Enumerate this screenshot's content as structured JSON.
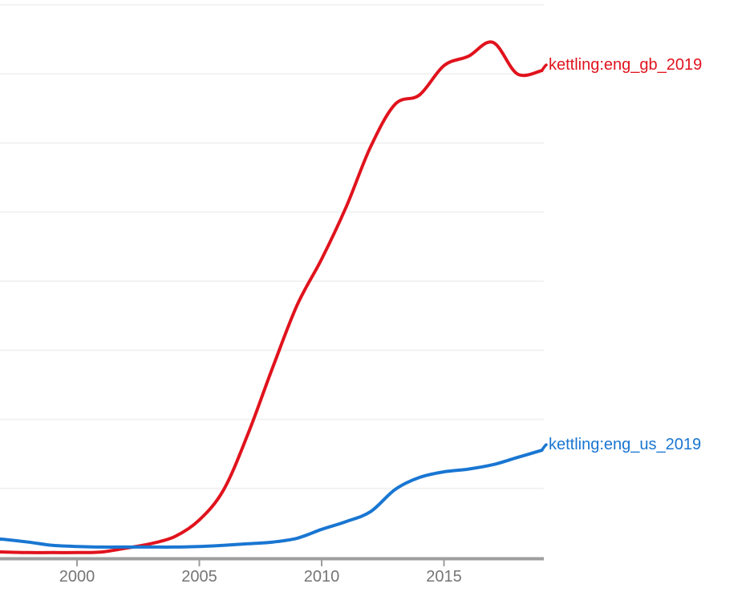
{
  "chart_data": {
    "type": "line",
    "title": "",
    "xlabel": "",
    "ylabel": "",
    "x": [
      1997,
      1998,
      1999,
      2000,
      2001,
      2002,
      2003,
      2004,
      2005,
      2006,
      2007,
      2008,
      2009,
      2010,
      2011,
      2012,
      2013,
      2014,
      2015,
      2016,
      2017,
      2018,
      2019
    ],
    "x_ticks": [
      2000,
      2005,
      2010,
      2015
    ],
    "x_tick_labels": [
      "2000",
      "2005",
      "2010",
      "2015"
    ],
    "xlim": [
      1996.85,
      2019
    ],
    "ylim": [
      0,
      100
    ],
    "y_axis_labels_visible": false,
    "y_units": "relative usage (percent of plot height; y-axis labels cropped out of screenshot)",
    "grid": "horizontal gridlines, 8 evenly spaced, no vertical gridlines",
    "legend_position": "inline labels at right end of each line",
    "series": [
      {
        "name": "kettling:eng_gb_2019",
        "color": "#e0131d",
        "values": [
          1.0,
          0.9,
          0.9,
          0.9,
          1.0,
          1.7,
          2.5,
          3.8,
          6.8,
          12.3,
          22.5,
          34.4,
          45.7,
          54.0,
          63.4,
          74.3,
          82.0,
          83.7,
          89.0,
          90.7,
          93.2,
          87.5,
          88.1
        ]
      },
      {
        "name": "kettling:eng_us_2019",
        "color": "#1976d2",
        "values": [
          3.3,
          2.8,
          2.2,
          2.0,
          1.9,
          1.9,
          1.9,
          1.9,
          2.0,
          2.2,
          2.5,
          2.8,
          3.5,
          5.1,
          6.5,
          8.3,
          12.3,
          14.5,
          15.5,
          16.0,
          16.8,
          18.1,
          19.4
        ]
      }
    ],
    "styles": {
      "gridline_color": "#f2f2f2",
      "axis_color": "#9e9e9e",
      "tick_label_color": "#757575",
      "background": "#ffffff"
    }
  }
}
